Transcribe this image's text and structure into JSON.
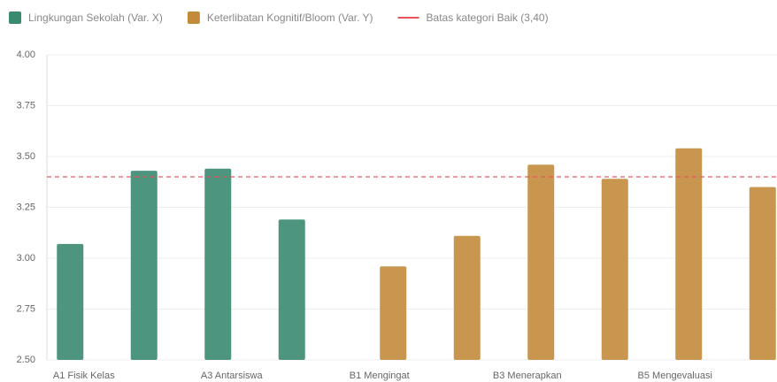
{
  "chart_data": {
    "type": "bar",
    "categories": [
      "A1 Fisik Kelas",
      null,
      "A3 Antarsiswa",
      null,
      "B1 Mengingat",
      null,
      "B3 Menerapkan",
      null,
      "B5 Mengevaluasi",
      null
    ],
    "series": [
      {
        "name": "Lingkungan Sekolah (Var. X)",
        "color": "#3a8a70",
        "values": [
          3.07,
          3.43,
          3.44,
          3.19,
          null,
          null,
          null,
          null,
          null,
          null
        ]
      },
      {
        "name": "Keterlibatan Kognitif/Bloom (Var. Y)",
        "color": "#c28b3c",
        "values": [
          null,
          null,
          null,
          null,
          2.96,
          3.11,
          3.46,
          3.39,
          3.54,
          3.35
        ]
      }
    ],
    "threshold": {
      "name": "Batas kategori Baik (3,40)",
      "value": 3.4,
      "color": "#e8525a"
    },
    "ylim": [
      2.5,
      4.0
    ],
    "yticks": [
      {
        "value": 2.5,
        "label": "2.50"
      },
      {
        "value": 2.75,
        "label": "2.75"
      },
      {
        "value": 3.0,
        "label": "3.00"
      },
      {
        "value": 3.25,
        "label": "3.25"
      },
      {
        "value": 3.5,
        "label": "3.50"
      },
      {
        "value": 3.75,
        "label": "3.75"
      },
      {
        "value": 4.0,
        "label": "4.00"
      }
    ],
    "grid": true
  }
}
